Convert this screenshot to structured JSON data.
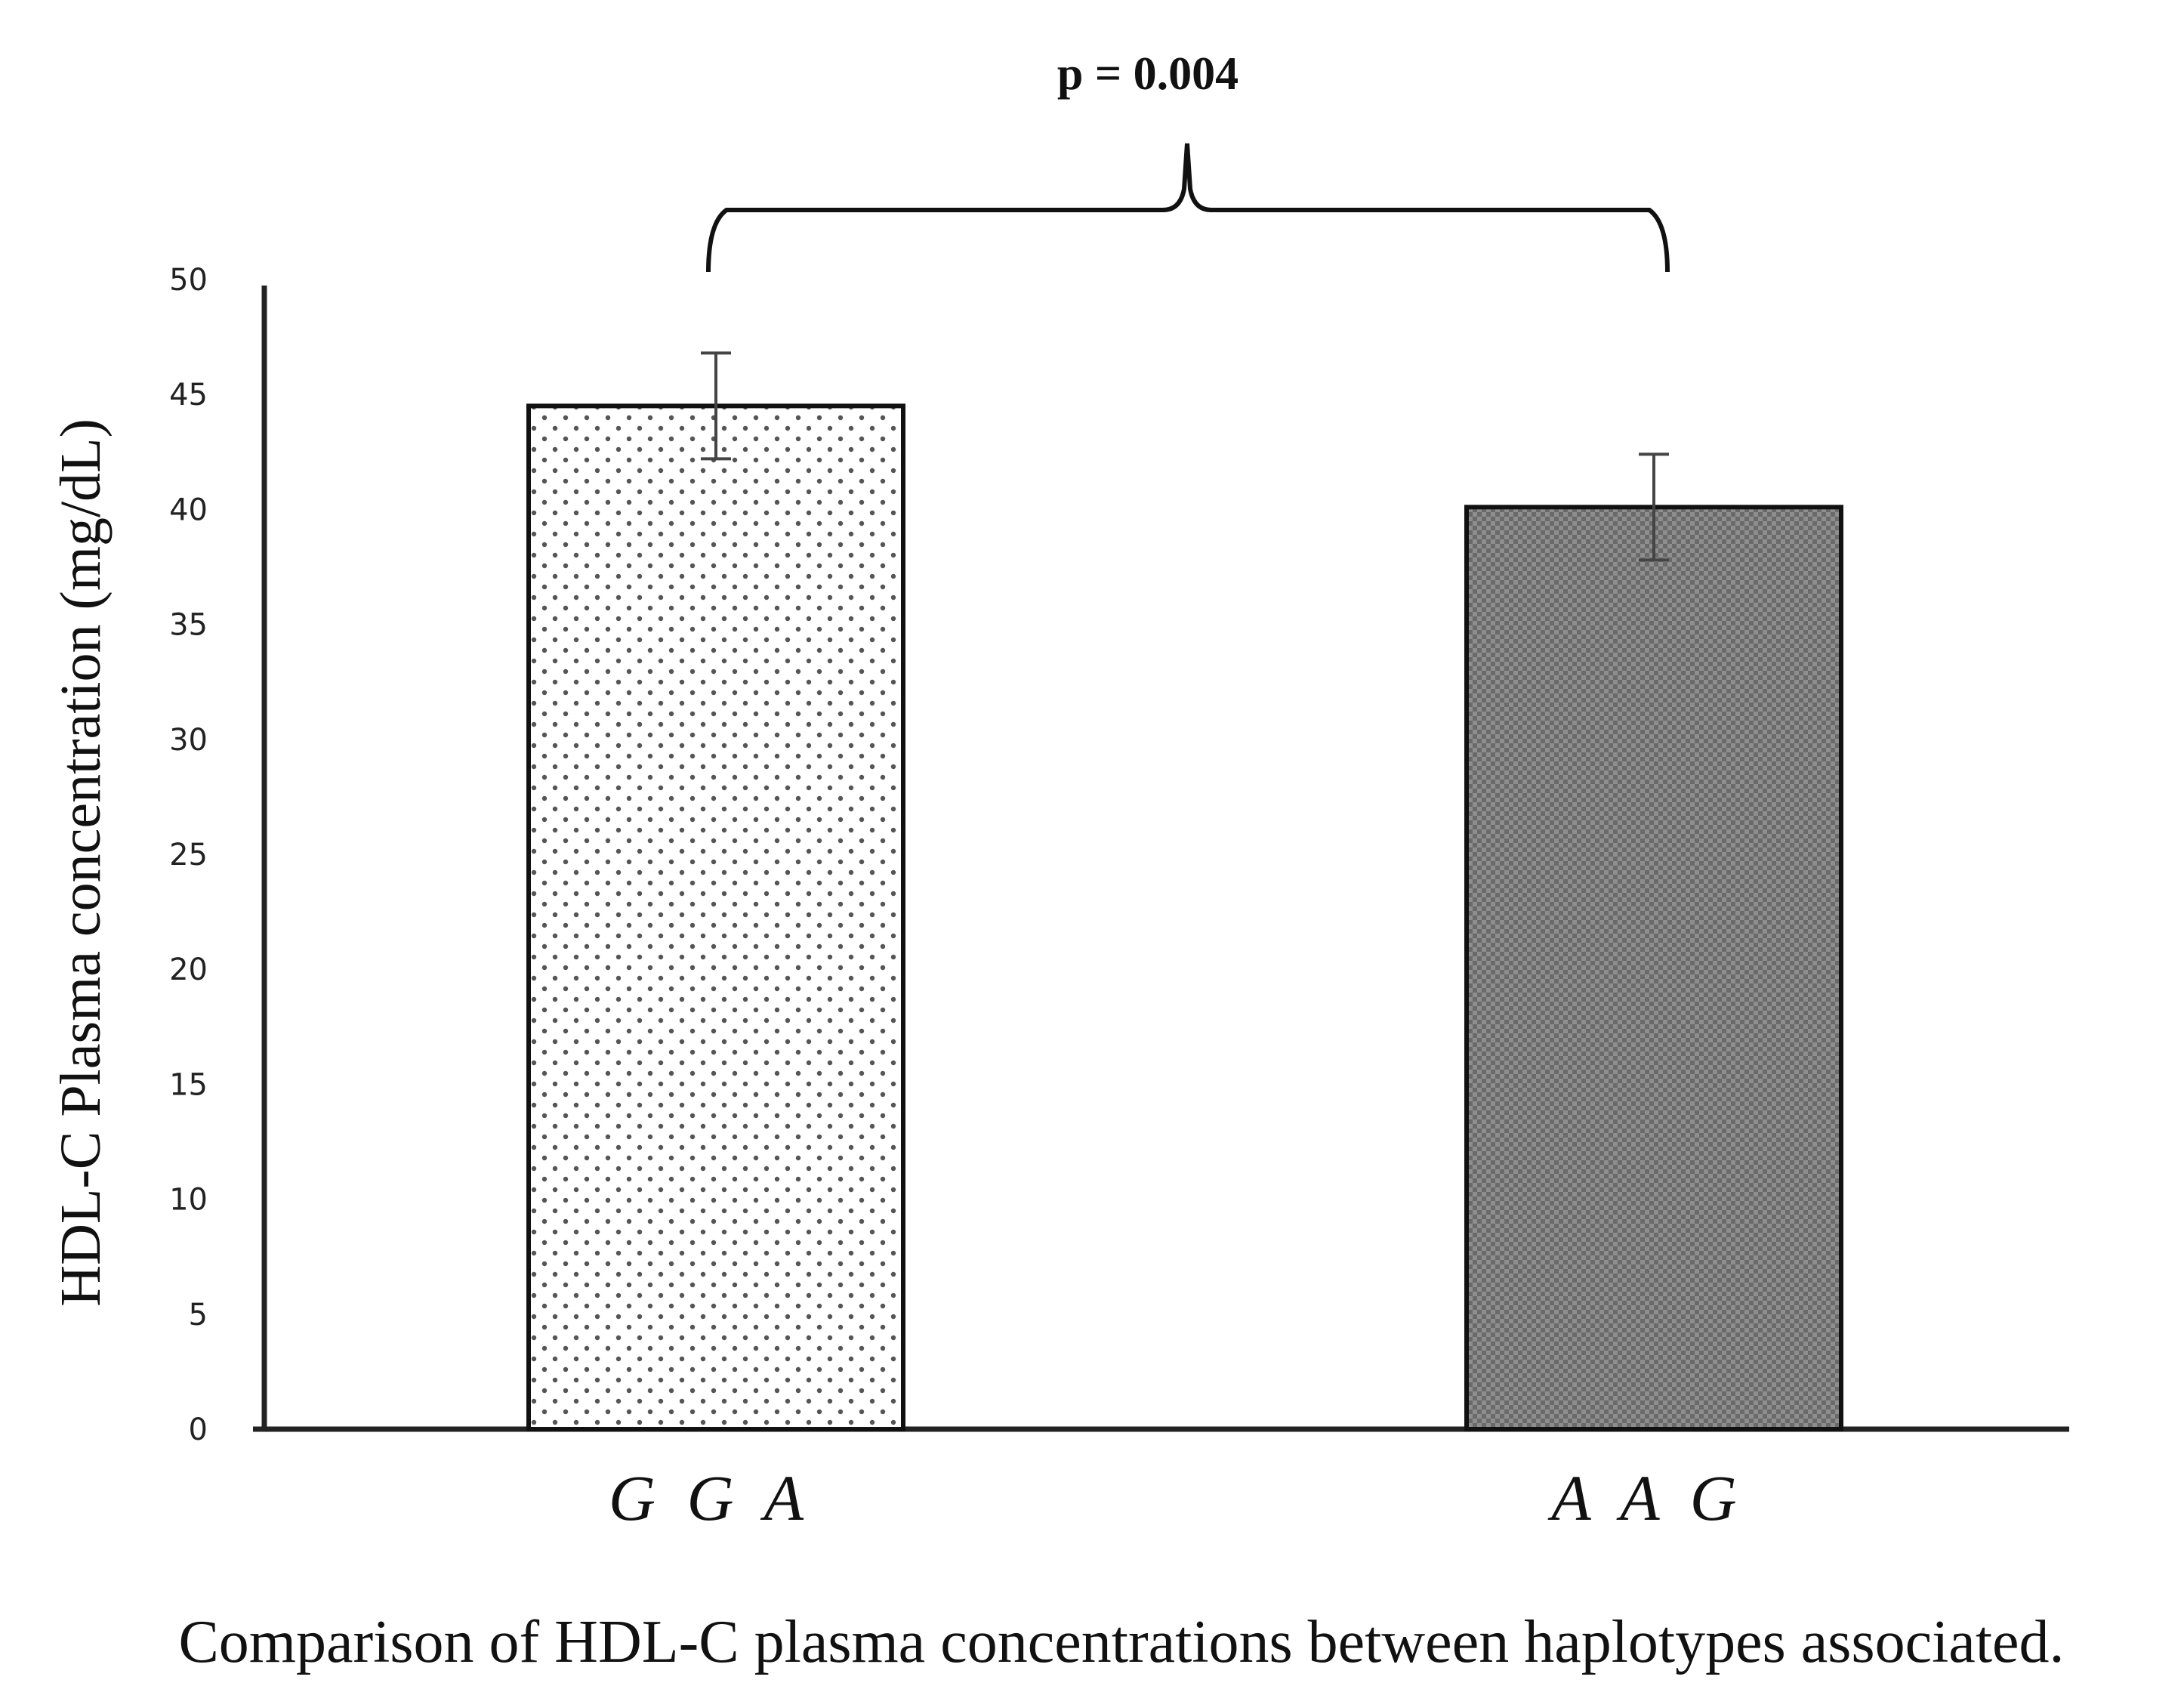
{
  "chart_data": {
    "type": "bar",
    "categories": [
      "G G A",
      "A A G"
    ],
    "values": [
      44.5,
      40.1
    ],
    "errors": [
      2.3,
      2.3
    ],
    "ylabel": "HDL-C Plasma concentration (mg/dL)",
    "xlabel": "",
    "ylim": [
      0,
      50
    ],
    "yticks": [
      0,
      5,
      10,
      15,
      20,
      25,
      30,
      35,
      40,
      45,
      50
    ],
    "annotation": "p = 0.004",
    "caption": "Comparison of HDL-C plasma concentrations between haplotypes associated.",
    "bar_fills": [
      "dotted-light",
      "checkered-dark"
    ],
    "grid": false
  }
}
